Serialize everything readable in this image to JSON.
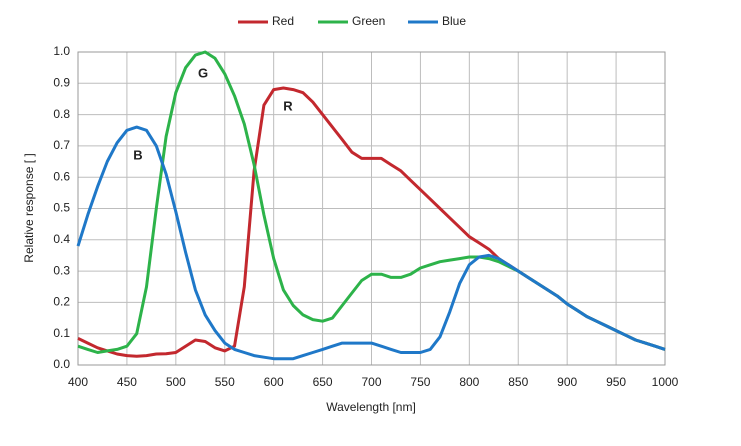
{
  "chart_data": {
    "type": "line",
    "x_label": "Wavelength [nm]",
    "y_label": "Relative response [ ]",
    "x": [
      400,
      410,
      420,
      430,
      440,
      450,
      460,
      470,
      480,
      490,
      500,
      510,
      520,
      530,
      540,
      550,
      560,
      570,
      580,
      590,
      600,
      610,
      620,
      630,
      640,
      650,
      660,
      670,
      680,
      690,
      700,
      710,
      720,
      730,
      740,
      750,
      760,
      770,
      780,
      790,
      800,
      810,
      820,
      830,
      840,
      850,
      860,
      870,
      880,
      890,
      900,
      910,
      920,
      930,
      940,
      950,
      960,
      970,
      980,
      990,
      1000
    ],
    "series": [
      {
        "name": "Red",
        "color": "#c3282e",
        "values": [
          0.085,
          0.07,
          0.055,
          0.045,
          0.035,
          0.03,
          0.028,
          0.03,
          0.035,
          0.036,
          0.04,
          0.06,
          0.08,
          0.075,
          0.055,
          0.045,
          0.06,
          0.25,
          0.62,
          0.83,
          0.88,
          0.885,
          0.88,
          0.87,
          0.84,
          0.8,
          0.76,
          0.72,
          0.68,
          0.66,
          0.66,
          0.66,
          0.64,
          0.62,
          0.59,
          0.56,
          0.53,
          0.5,
          0.47,
          0.44,
          0.41,
          0.39,
          0.37,
          0.34,
          0.32,
          0.3,
          0.28,
          0.26,
          0.24,
          0.22,
          0.195,
          0.175,
          0.155,
          0.14,
          0.125,
          0.11,
          0.095,
          0.08,
          0.07,
          0.06,
          0.05
        ]
      },
      {
        "name": "Green",
        "color": "#2db34a",
        "values": [
          0.06,
          0.05,
          0.04,
          0.045,
          0.05,
          0.06,
          0.1,
          0.25,
          0.5,
          0.73,
          0.87,
          0.95,
          0.99,
          1.0,
          0.98,
          0.93,
          0.86,
          0.77,
          0.64,
          0.48,
          0.34,
          0.24,
          0.19,
          0.16,
          0.145,
          0.14,
          0.15,
          0.19,
          0.23,
          0.27,
          0.29,
          0.29,
          0.28,
          0.28,
          0.29,
          0.31,
          0.32,
          0.33,
          0.335,
          0.34,
          0.345,
          0.345,
          0.34,
          0.33,
          0.315,
          0.3,
          0.28,
          0.26,
          0.24,
          0.22,
          0.195,
          0.175,
          0.155,
          0.14,
          0.125,
          0.11,
          0.095,
          0.08,
          0.07,
          0.06,
          0.05
        ]
      },
      {
        "name": "Blue",
        "color": "#1f78c8",
        "values": [
          0.38,
          0.48,
          0.57,
          0.65,
          0.71,
          0.75,
          0.76,
          0.75,
          0.7,
          0.61,
          0.49,
          0.36,
          0.24,
          0.16,
          0.11,
          0.07,
          0.05,
          0.04,
          0.03,
          0.025,
          0.02,
          0.02,
          0.02,
          0.03,
          0.04,
          0.05,
          0.06,
          0.07,
          0.07,
          0.07,
          0.07,
          0.06,
          0.05,
          0.04,
          0.04,
          0.04,
          0.05,
          0.09,
          0.17,
          0.26,
          0.32,
          0.345,
          0.35,
          0.34,
          0.32,
          0.3,
          0.28,
          0.26,
          0.24,
          0.22,
          0.195,
          0.175,
          0.155,
          0.14,
          0.125,
          0.11,
          0.095,
          0.08,
          0.07,
          0.06,
          0.05
        ]
      }
    ],
    "annotations": [
      "R",
      "G",
      "B"
    ],
    "xlim": [
      400,
      1000
    ],
    "xticks": [
      400,
      450,
      500,
      550,
      600,
      650,
      700,
      750,
      800,
      850,
      900,
      950,
      1000
    ],
    "ylim": [
      0,
      1
    ],
    "yticks": [
      {
        "value": 0,
        "label": "0.0"
      },
      0.1,
      0.2,
      0.3,
      0.4,
      0.5,
      0.6,
      0.7,
      0.8,
      0.9,
      {
        "value": 1,
        "label": "1.0"
      }
    ],
    "grid": true,
    "legend": "top"
  }
}
